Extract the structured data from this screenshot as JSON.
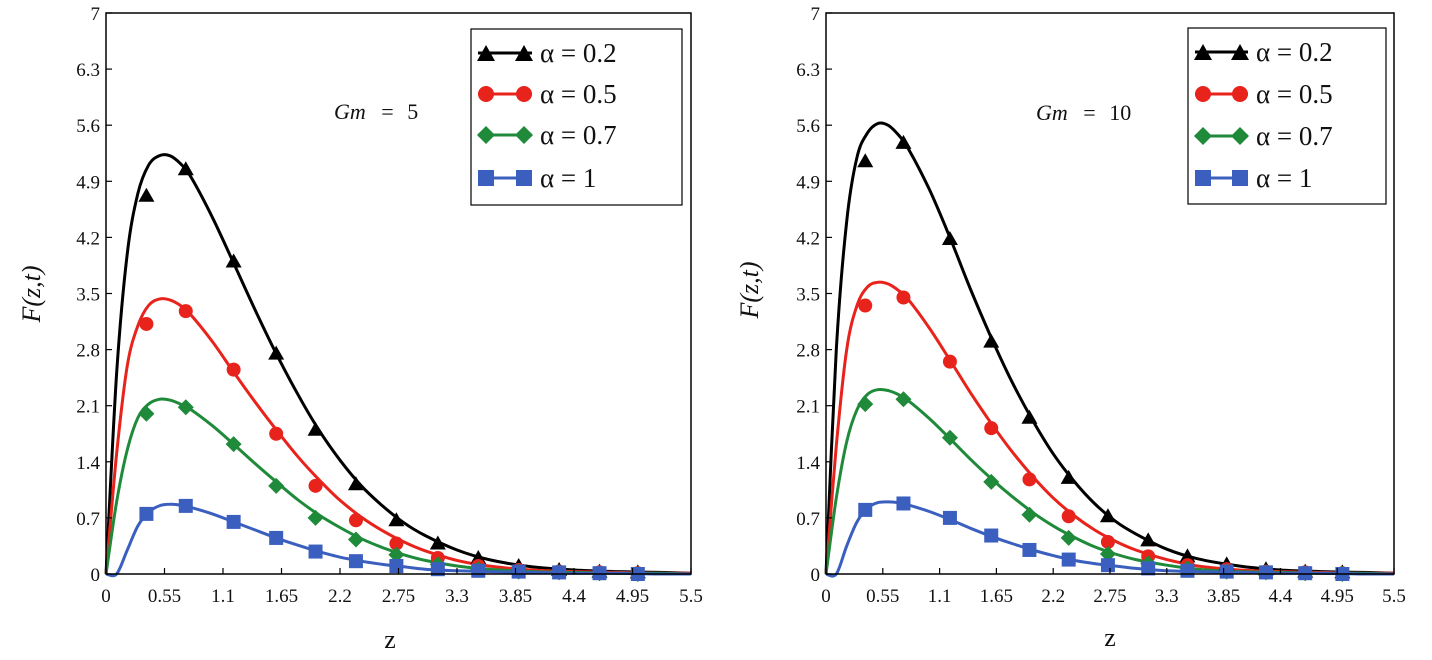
{
  "chart_data": [
    {
      "type": "line",
      "annotation": {
        "var": "Gm",
        "eq": "=",
        "value": "5"
      },
      "xlabel": "z",
      "ylabel": "F(z,t)",
      "xlim": [
        0,
        5.5
      ],
      "ylim": [
        0,
        7
      ],
      "xticks": [
        "0",
        "0.55",
        "1.1",
        "1.65",
        "2.2",
        "2.75",
        "3.3",
        "3.85",
        "4.4",
        "4.95",
        "5.5"
      ],
      "yticks": [
        "0",
        "0.7",
        "1.4",
        "2.1",
        "2.8",
        "3.5",
        "4.2",
        "4.9",
        "5.6",
        "6.3",
        "7"
      ],
      "grid": false,
      "legend_position": "top-right",
      "series": [
        {
          "name": "α = 0.2",
          "color": "#000000",
          "marker": "triangle",
          "x": [
            0,
            0.1,
            0.2,
            0.3,
            0.4,
            0.5,
            0.6,
            0.7,
            0.8,
            1.0,
            1.2,
            1.4,
            1.6,
            1.8,
            2.0,
            2.2,
            2.4,
            2.6,
            2.8,
            3.0,
            3.3,
            3.6,
            4.0,
            4.4,
            4.8,
            5.2,
            5.5
          ],
          "y": [
            0,
            2.5,
            4.0,
            4.75,
            5.1,
            5.22,
            5.22,
            5.12,
            4.95,
            4.45,
            3.88,
            3.3,
            2.75,
            2.25,
            1.8,
            1.42,
            1.1,
            0.85,
            0.64,
            0.48,
            0.3,
            0.18,
            0.09,
            0.05,
            0.03,
            0.02,
            0.01
          ],
          "marker_x": [
            0.38,
            0.75,
            1.2,
            1.6,
            1.97,
            2.35,
            2.73,
            3.12,
            3.5,
            3.88,
            4.26,
            4.64,
            5.0
          ],
          "marker_y": [
            4.72,
            5.05,
            3.9,
            2.75,
            1.8,
            1.12,
            0.67,
            0.38,
            0.2,
            0.1,
            0.05,
            0.03,
            0.02
          ]
        },
        {
          "name": "α = 0.5",
          "color": "#e8231c",
          "marker": "circle",
          "x": [
            0,
            0.1,
            0.2,
            0.3,
            0.4,
            0.5,
            0.6,
            0.7,
            0.8,
            1.0,
            1.2,
            1.4,
            1.6,
            1.8,
            2.0,
            2.2,
            2.4,
            2.6,
            2.8,
            3.0,
            3.3,
            3.6,
            4.0,
            4.4,
            4.8,
            5.2,
            5.5
          ],
          "y": [
            0,
            1.5,
            2.6,
            3.1,
            3.35,
            3.43,
            3.42,
            3.35,
            3.23,
            2.9,
            2.52,
            2.15,
            1.8,
            1.47,
            1.18,
            0.92,
            0.71,
            0.54,
            0.4,
            0.29,
            0.17,
            0.1,
            0.05,
            0.03,
            0.02,
            0.01,
            0.01
          ],
          "marker_x": [
            0.38,
            0.75,
            1.2,
            1.6,
            1.97,
            2.35,
            2.73,
            3.12,
            3.5,
            3.88,
            4.26,
            4.64,
            5.0
          ],
          "marker_y": [
            3.12,
            3.28,
            2.55,
            1.75,
            1.1,
            0.67,
            0.38,
            0.2,
            0.1,
            0.05,
            0.03,
            0.02,
            0.01
          ]
        },
        {
          "name": "α = 0.7",
          "color": "#1f8a3a",
          "marker": "diamond",
          "x": [
            0,
            0.1,
            0.2,
            0.3,
            0.4,
            0.5,
            0.6,
            0.7,
            0.8,
            1.0,
            1.2,
            1.4,
            1.6,
            1.8,
            2.0,
            2.2,
            2.4,
            2.6,
            2.8,
            3.0,
            3.3,
            3.6,
            4.0,
            4.4,
            4.8,
            5.2,
            5.5
          ],
          "y": [
            0,
            0.9,
            1.55,
            1.95,
            2.12,
            2.18,
            2.17,
            2.12,
            2.05,
            1.85,
            1.62,
            1.38,
            1.15,
            0.93,
            0.74,
            0.58,
            0.44,
            0.33,
            0.24,
            0.17,
            0.1,
            0.06,
            0.03,
            0.02,
            0.01,
            0.01,
            0.0
          ],
          "marker_x": [
            0.38,
            0.75,
            1.2,
            1.6,
            1.97,
            2.35,
            2.73,
            3.12,
            3.5,
            3.88,
            4.26,
            4.64,
            5.0
          ],
          "marker_y": [
            2.0,
            2.08,
            1.62,
            1.1,
            0.7,
            0.43,
            0.24,
            0.12,
            0.06,
            0.03,
            0.02,
            0.01,
            0.0
          ]
        },
        {
          "name": "α = 1",
          "color": "#3a5fbf",
          "marker": "square",
          "x": [
            0,
            0.1,
            0.2,
            0.3,
            0.4,
            0.5,
            0.6,
            0.7,
            0.8,
            1.0,
            1.2,
            1.4,
            1.6,
            1.8,
            2.0,
            2.2,
            2.4,
            2.6,
            2.8,
            3.0,
            3.3,
            3.6,
            4.0,
            4.4,
            4.8,
            5.2,
            5.5
          ],
          "y": [
            0,
            0.0,
            0.3,
            0.6,
            0.77,
            0.85,
            0.87,
            0.86,
            0.83,
            0.75,
            0.65,
            0.55,
            0.45,
            0.36,
            0.28,
            0.21,
            0.16,
            0.12,
            0.09,
            0.06,
            0.04,
            0.03,
            0.02,
            0.01,
            0.01,
            0.0,
            0.0
          ],
          "marker_x": [
            0.38,
            0.75,
            1.2,
            1.6,
            1.97,
            2.35,
            2.73,
            3.12,
            3.5,
            3.88,
            4.26,
            4.64,
            5.0
          ],
          "marker_y": [
            0.75,
            0.85,
            0.65,
            0.45,
            0.28,
            0.16,
            0.1,
            0.06,
            0.04,
            0.03,
            0.02,
            0.01,
            0.0
          ]
        }
      ]
    },
    {
      "type": "line",
      "annotation": {
        "var": "Gm",
        "eq": "=",
        "value": "10"
      },
      "xlabel": "z",
      "ylabel": "F(z,t)",
      "xlim": [
        0,
        5.5
      ],
      "ylim": [
        0,
        7
      ],
      "xticks": [
        "0",
        "0.55",
        "1.1",
        "1.65",
        "2.2",
        "2.75",
        "3.3",
        "3.85",
        "4.4",
        "4.95",
        "5.5"
      ],
      "yticks": [
        "0",
        "0.7",
        "1.4",
        "2.1",
        "2.8",
        "3.5",
        "4.2",
        "4.9",
        "5.6",
        "6.3",
        "7"
      ],
      "grid": false,
      "legend_position": "top-right",
      "series": [
        {
          "name": "α = 0.2",
          "color": "#000000",
          "marker": "triangle",
          "x": [
            0,
            0.1,
            0.2,
            0.3,
            0.4,
            0.5,
            0.6,
            0.7,
            0.8,
            1.0,
            1.2,
            1.4,
            1.6,
            1.8,
            2.0,
            2.2,
            2.4,
            2.6,
            2.8,
            3.0,
            3.3,
            3.6,
            4.0,
            4.4,
            4.8,
            5.2,
            5.5
          ],
          "y": [
            0,
            2.8,
            4.4,
            5.2,
            5.5,
            5.62,
            5.6,
            5.48,
            5.3,
            4.8,
            4.2,
            3.55,
            2.95,
            2.4,
            1.92,
            1.5,
            1.16,
            0.88,
            0.66,
            0.5,
            0.31,
            0.19,
            0.1,
            0.05,
            0.03,
            0.02,
            0.01
          ],
          "marker_x": [
            0.38,
            0.75,
            1.2,
            1.6,
            1.97,
            2.35,
            2.73,
            3.12,
            3.5,
            3.88,
            4.26,
            4.64,
            5.0
          ],
          "marker_y": [
            5.15,
            5.38,
            4.18,
            2.9,
            1.95,
            1.2,
            0.72,
            0.42,
            0.22,
            0.12,
            0.06,
            0.03,
            0.02
          ]
        },
        {
          "name": "α = 0.5",
          "color": "#e8231c",
          "marker": "circle",
          "x": [
            0,
            0.1,
            0.2,
            0.3,
            0.4,
            0.5,
            0.6,
            0.7,
            0.8,
            1.0,
            1.2,
            1.4,
            1.6,
            1.8,
            2.0,
            2.2,
            2.4,
            2.6,
            2.8,
            3.0,
            3.3,
            3.6,
            4.0,
            4.4,
            4.8,
            5.2,
            5.5
          ],
          "y": [
            0,
            1.6,
            2.8,
            3.35,
            3.58,
            3.64,
            3.62,
            3.54,
            3.42,
            3.07,
            2.67,
            2.26,
            1.88,
            1.53,
            1.22,
            0.95,
            0.73,
            0.55,
            0.41,
            0.3,
            0.18,
            0.1,
            0.05,
            0.03,
            0.02,
            0.01,
            0.01
          ],
          "marker_x": [
            0.38,
            0.75,
            1.2,
            1.6,
            1.97,
            2.35,
            2.73,
            3.12,
            3.5,
            3.88,
            4.26,
            4.64,
            5.0
          ],
          "marker_y": [
            3.35,
            3.45,
            2.65,
            1.82,
            1.18,
            0.72,
            0.4,
            0.22,
            0.11,
            0.06,
            0.03,
            0.02,
            0.01
          ]
        },
        {
          "name": "α = 0.7",
          "color": "#1f8a3a",
          "marker": "diamond",
          "x": [
            0,
            0.1,
            0.2,
            0.3,
            0.4,
            0.5,
            0.6,
            0.7,
            0.8,
            1.0,
            1.2,
            1.4,
            1.6,
            1.8,
            2.0,
            2.2,
            2.4,
            2.6,
            2.8,
            3.0,
            3.3,
            3.6,
            4.0,
            4.4,
            4.8,
            5.2,
            5.5
          ],
          "y": [
            0,
            0.95,
            1.65,
            2.05,
            2.24,
            2.3,
            2.29,
            2.24,
            2.16,
            1.94,
            1.69,
            1.43,
            1.19,
            0.97,
            0.77,
            0.6,
            0.46,
            0.34,
            0.25,
            0.18,
            0.11,
            0.06,
            0.03,
            0.02,
            0.01,
            0.01,
            0.0
          ],
          "marker_x": [
            0.38,
            0.75,
            1.2,
            1.6,
            1.97,
            2.35,
            2.73,
            3.12,
            3.5,
            3.88,
            4.26,
            4.64,
            5.0
          ],
          "marker_y": [
            2.12,
            2.18,
            1.7,
            1.15,
            0.74,
            0.45,
            0.25,
            0.13,
            0.07,
            0.03,
            0.02,
            0.01,
            0.0
          ]
        },
        {
          "name": "α = 1",
          "color": "#3a5fbf",
          "marker": "square",
          "x": [
            0,
            0.1,
            0.2,
            0.3,
            0.4,
            0.5,
            0.6,
            0.7,
            0.8,
            1.0,
            1.2,
            1.4,
            1.6,
            1.8,
            2.0,
            2.2,
            2.4,
            2.6,
            2.8,
            3.0,
            3.3,
            3.6,
            4.0,
            4.4,
            4.8,
            5.2,
            5.5
          ],
          "y": [
            0,
            0.0,
            0.35,
            0.65,
            0.82,
            0.89,
            0.9,
            0.89,
            0.86,
            0.78,
            0.68,
            0.57,
            0.47,
            0.38,
            0.3,
            0.23,
            0.17,
            0.13,
            0.1,
            0.07,
            0.04,
            0.03,
            0.02,
            0.01,
            0.01,
            0.0,
            0.0
          ],
          "marker_x": [
            0.38,
            0.75,
            1.2,
            1.6,
            1.97,
            2.35,
            2.73,
            3.12,
            3.5,
            3.88,
            4.26,
            4.64,
            5.0
          ],
          "marker_y": [
            0.8,
            0.88,
            0.7,
            0.48,
            0.3,
            0.18,
            0.11,
            0.07,
            0.04,
            0.03,
            0.02,
            0.01,
            0.0
          ]
        }
      ]
    }
  ]
}
